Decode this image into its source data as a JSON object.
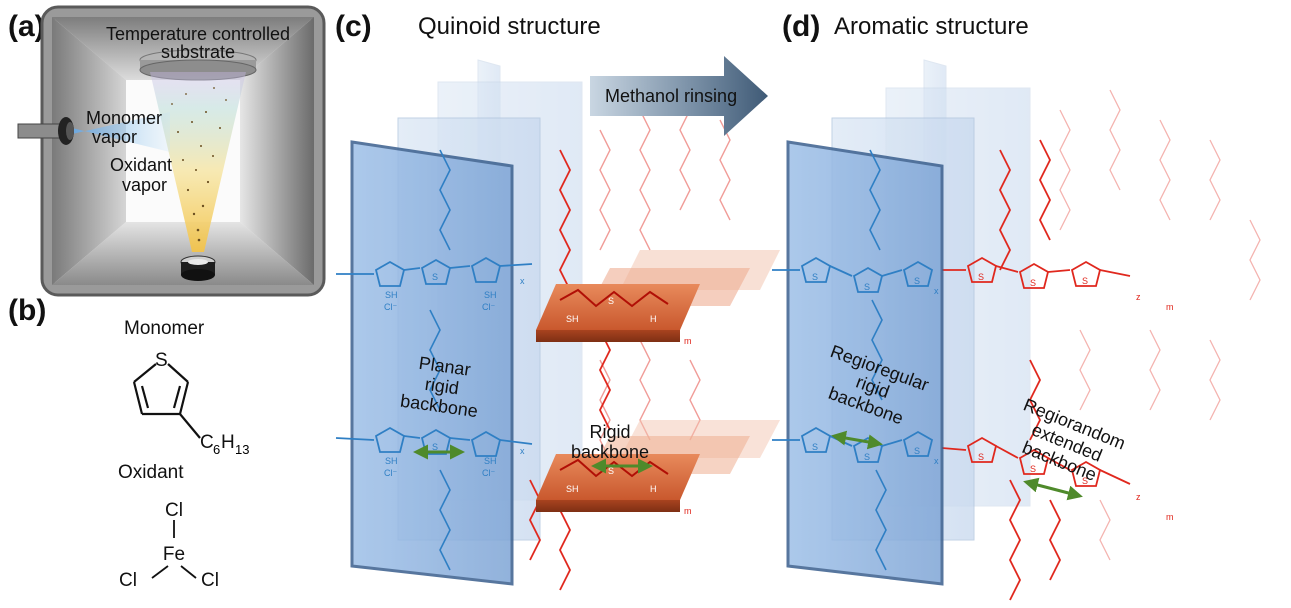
{
  "panels": {
    "a": {
      "letter": "(a)",
      "substrate_label_line1": "Temperature controlled",
      "substrate_label_line2": "substrate",
      "monomer_vapor_line1": "Monomer",
      "monomer_vapor_line2": "vapor",
      "oxidant_vapor_line1": "Oxidant",
      "oxidant_vapor_line2": "vapor"
    },
    "b": {
      "letter": "(b)",
      "monomer_label": "Monomer",
      "oxidant_label": "Oxidant",
      "thiophene_heteroatom": "S",
      "side_chain_c": "C",
      "side_chain_c_sub": "6",
      "side_chain_h": "H",
      "side_chain_h_sub": "13",
      "iron": "Fe",
      "chlorine": "Cl"
    },
    "c": {
      "letter": "(c)",
      "title": "Quinoid structure",
      "label_planar_line1": "Planar",
      "label_planar_line2": "rigid",
      "label_planar_line3": "backbone",
      "label_rigid_line1": "Rigid",
      "label_rigid_line2": "backbone"
    },
    "d": {
      "letter": "(d)",
      "title": "Aromatic structure",
      "label_regioregular_line1": "Regioregular",
      "label_regioregular_line2": "rigid",
      "label_regioregular_line3": "backbone",
      "label_regiorandom_line1": "Regiorandom",
      "label_regiorandom_line2": "extended",
      "label_regiorandom_line3": "backbone"
    }
  },
  "process_arrow": {
    "label": "Methanol rinsing"
  },
  "structure_atoms": {
    "s": "S",
    "sh": "SH",
    "cl_minus": "Cl⁻",
    "h": "H",
    "plus": "+",
    "x": "x",
    "m": "m",
    "z": "z"
  },
  "colors": {
    "blue_chain": "#2f7fc4",
    "red_chain": "#e0281e",
    "orange_chain": "#d2691e",
    "plate_blue": "#8fb4e0",
    "plate_edge": "#3a5f8e",
    "arrow_gray": "#5c7590",
    "green_arrow": "#4f8a2b"
  }
}
